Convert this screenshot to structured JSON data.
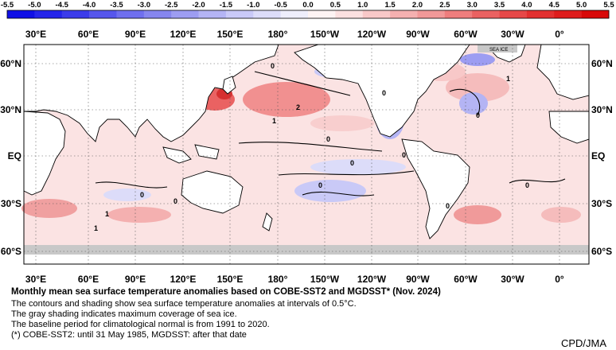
{
  "colorbar": {
    "ticks": [
      "-5.5",
      "-5.0",
      "-4.5",
      "-4.0",
      "-3.5",
      "-3.0",
      "-2.5",
      "-2.0",
      "-1.5",
      "-1.0",
      "-0.5",
      "0.0",
      "0.5",
      "1.0",
      "1.5",
      "2.0",
      "2.5",
      "3.0",
      "3.5",
      "4.0",
      "4.5",
      "5.0",
      "5.5"
    ],
    "colors": [
      "#1010e6",
      "#2525ea",
      "#3c3cea",
      "#5656ec",
      "#6f6fee",
      "#8686ee",
      "#9d9df2",
      "#b4b4f4",
      "#c9c9f7",
      "#dcdcf9",
      "#eeeefc",
      "#fdf3f3",
      "#fbe0e0",
      "#f8c8c8",
      "#f4b0b0",
      "#f19898",
      "#ee7d7d",
      "#ea6262",
      "#e64848",
      "#e23030",
      "#de1c1c",
      "#d80808"
    ]
  },
  "map": {
    "lon_labels_top": [
      "30°E",
      "60°E",
      "90°E",
      "120°E",
      "150°E",
      "180°",
      "150°W",
      "120°W",
      "90°W",
      "60°W",
      "30°W",
      "0°"
    ],
    "lon_labels_bottom": [
      "30°E",
      "60°E",
      "90°E",
      "120°E",
      "150°E",
      "180°",
      "150°W",
      "120°W",
      "90°W",
      "60°W",
      "30°W",
      "0°"
    ],
    "lat_labels": [
      "60°N",
      "30°N",
      "EQ",
      "30°S",
      "60°S"
    ],
    "sea_ice_label": "SEA ICE",
    "contour_labels": [
      "0",
      "0",
      "0",
      "0",
      "0",
      "0",
      "0",
      "0",
      "0",
      "0",
      "0",
      "1",
      "1",
      "1",
      "1",
      "2"
    ],
    "colors": {
      "land": "#ffffff",
      "sea_ice": "#c8c8c8",
      "warm": "#f4b9b9",
      "cool": "#c9c9f4"
    }
  },
  "caption": {
    "title": "Monthly mean sea surface temperature anomalies based on COBE-SST2 and MGDSST* (Nov. 2024)",
    "line1": "The contours and shading show sea surface temperature anomalies at intervals of 0.5°C.",
    "line2": "The gray shading indicates maximum coverage of sea ice.",
    "line3": "The baseline period for climatological normal is from 1991 to 2020.",
    "line4": "(*) COBE-SST2: until 31 May 1985, MGDSST: after that date"
  },
  "credit": "CPD/JMA"
}
